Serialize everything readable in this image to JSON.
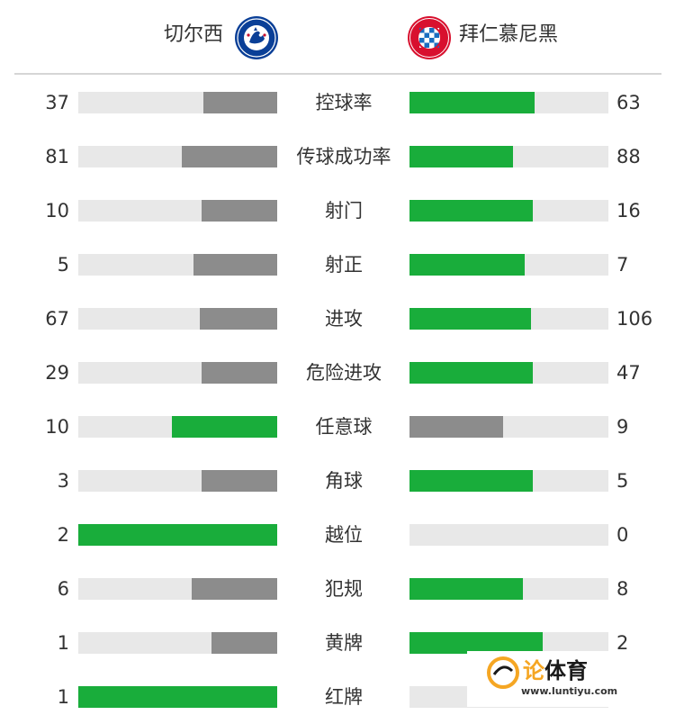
{
  "header": {
    "home_team": "切尔西",
    "away_team": "拜仁慕尼黑",
    "home_crest_text": "CHELSEA FOOTBALL CLUB",
    "away_crest_text": "FC BAYERN MÜNCHEN"
  },
  "colors": {
    "winner": "#19ad3b",
    "loser": "#8c8c8c",
    "track": "#e8e8e8"
  },
  "stats": [
    {
      "label": "控球率",
      "home": "37",
      "away": "63",
      "home_frac": 0.37,
      "away_frac": 0.63,
      "home_color": "loser",
      "away_color": "winner"
    },
    {
      "label": "传球成功率",
      "home": "81",
      "away": "88",
      "home_frac": 0.48,
      "away_frac": 0.52,
      "home_color": "loser",
      "away_color": "winner"
    },
    {
      "label": "射门",
      "home": "10",
      "away": "16",
      "home_frac": 0.38,
      "away_frac": 0.62,
      "home_color": "loser",
      "away_color": "winner"
    },
    {
      "label": "射正",
      "home": "5",
      "away": "7",
      "home_frac": 0.42,
      "away_frac": 0.58,
      "home_color": "loser",
      "away_color": "winner"
    },
    {
      "label": "进攻",
      "home": "67",
      "away": "106",
      "home_frac": 0.39,
      "away_frac": 0.61,
      "home_color": "loser",
      "away_color": "winner"
    },
    {
      "label": "危险进攻",
      "home": "29",
      "away": "47",
      "home_frac": 0.38,
      "away_frac": 0.62,
      "home_color": "loser",
      "away_color": "winner"
    },
    {
      "label": "任意球",
      "home": "10",
      "away": "9",
      "home_frac": 0.53,
      "away_frac": 0.47,
      "home_color": "winner",
      "away_color": "loser"
    },
    {
      "label": "角球",
      "home": "3",
      "away": "5",
      "home_frac": 0.38,
      "away_frac": 0.62,
      "home_color": "loser",
      "away_color": "winner"
    },
    {
      "label": "越位",
      "home": "2",
      "away": "0",
      "home_frac": 1.0,
      "away_frac": 0.0,
      "home_color": "winner",
      "away_color": "loser"
    },
    {
      "label": "犯规",
      "home": "6",
      "away": "8",
      "home_frac": 0.43,
      "away_frac": 0.57,
      "home_color": "loser",
      "away_color": "winner"
    },
    {
      "label": "黄牌",
      "home": "1",
      "away": "2",
      "home_frac": 0.33,
      "away_frac": 0.67,
      "home_color": "loser",
      "away_color": "winner"
    },
    {
      "label": "红牌",
      "home": "1",
      "away": "0",
      "home_frac": 1.0,
      "away_frac": 0.0,
      "home_color": "winner",
      "away_color": "loser"
    }
  ],
  "watermark": {
    "brand_first": "论",
    "brand_rest": "体育",
    "url": "www.luntiyu.com",
    "brand_first_color": "#f5a623",
    "brand_rest_color": "#1a1a1a"
  }
}
